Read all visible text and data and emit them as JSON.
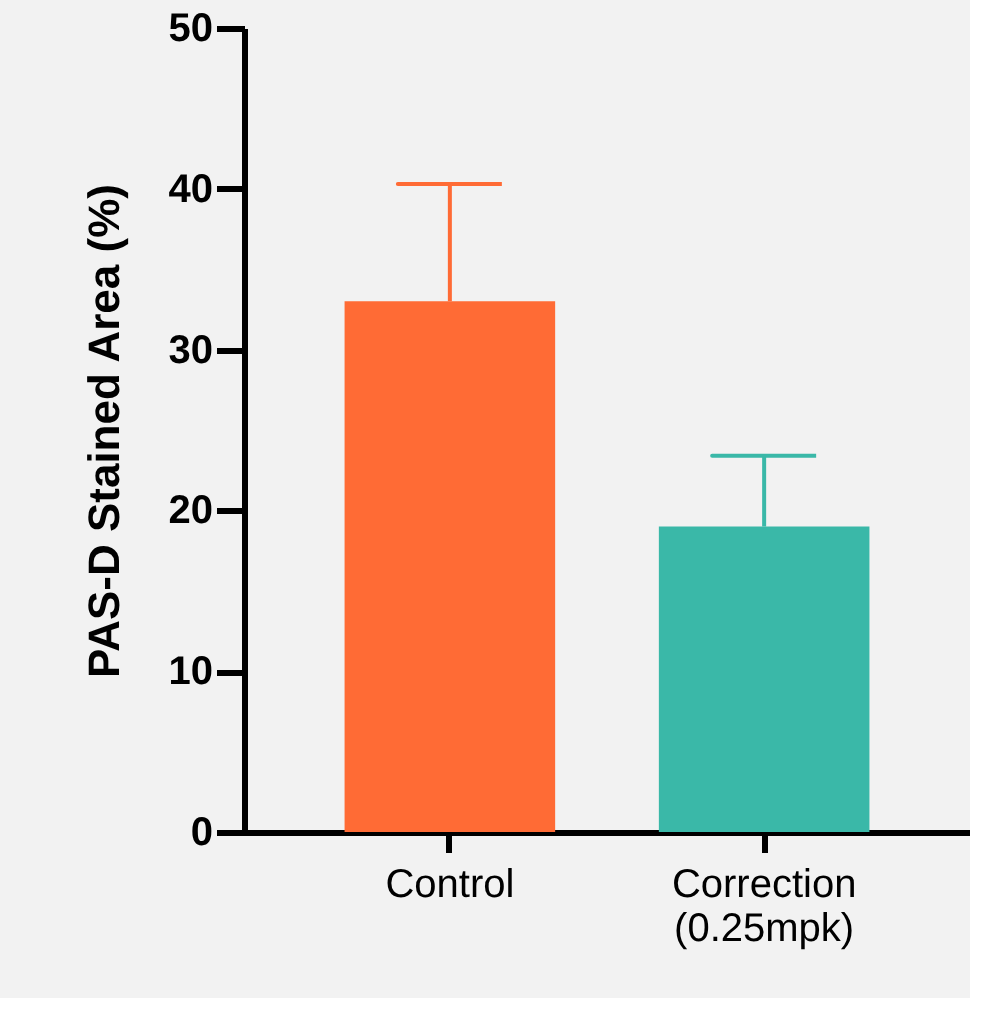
{
  "chart_data": {
    "type": "bar",
    "ylabel": "PAS-D Stained Area (%)",
    "categories": [
      "Control",
      "Correction (0.25mpk)"
    ],
    "values": [
      33.0,
      19.0
    ],
    "colors": [
      "#ff6b35",
      "#3ab8a8"
    ],
    "errors": [
      [
        33.0,
        40.3
      ],
      [
        19.0,
        23.4
      ]
    ],
    "ylim": [
      0,
      50
    ],
    "yticks": [
      0,
      10,
      20,
      30,
      40,
      50
    ],
    "grid": false
  }
}
